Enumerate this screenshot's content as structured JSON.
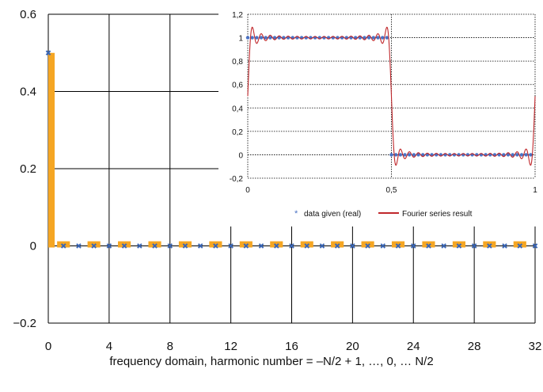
{
  "chart_data": [
    {
      "type": "bar",
      "xlabel": "frequency domain, harmonic number = –N/2 + 1, …, 0, … N/2",
      "ylabel": "",
      "xlim": [
        0,
        32
      ],
      "ylim": [
        -0.2,
        0.6
      ],
      "x_ticks": [
        0,
        4,
        8,
        12,
        16,
        20,
        24,
        28,
        32
      ],
      "x_tick_labels": [
        "0",
        "4",
        "8",
        "12",
        "16",
        "20",
        "24",
        "28",
        "32"
      ],
      "y_ticks": [
        -0.2,
        0,
        0.2,
        0.4,
        0.6
      ],
      "y_tick_labels": [
        "−0.2",
        "0",
        "0.2",
        "0.4",
        "0.6"
      ],
      "grid": true,
      "colors": {
        "bars": "#f5a623",
        "markers": "#3a66b5",
        "grid": "#000000"
      },
      "series": [
        {
          "kind": "bar",
          "x": [
            0,
            1,
            3,
            5,
            7,
            9,
            11,
            13,
            15,
            17,
            19,
            21,
            23,
            25,
            27,
            29,
            31
          ],
          "values": [
            0.5,
            0.012,
            0.012,
            0.012,
            0.012,
            0.012,
            0.012,
            0.012,
            0.012,
            0.012,
            0.012,
            0.012,
            0.012,
            0.012,
            0.012,
            0.012,
            0.012
          ]
        },
        {
          "kind": "marker",
          "marker": "x",
          "x": [
            0,
            1,
            2,
            3,
            4,
            5,
            6,
            7,
            8,
            9,
            10,
            11,
            12,
            13,
            14,
            15,
            16,
            17,
            18,
            19,
            20,
            21,
            22,
            23,
            24,
            25,
            26,
            27,
            28,
            29,
            30,
            31,
            32
          ],
          "values": [
            0.5,
            0,
            0,
            0,
            0,
            0,
            0,
            0,
            0,
            0,
            0,
            0,
            0,
            0,
            0,
            0,
            0,
            0,
            0,
            0,
            0,
            0,
            0,
            0,
            0,
            0,
            0,
            0,
            0,
            0,
            0,
            0,
            0
          ]
        }
      ]
    },
    {
      "type": "line",
      "xlim": [
        0,
        1
      ],
      "ylim": [
        -0.2,
        1.2
      ],
      "x_ticks": [
        0,
        0.5,
        1
      ],
      "x_tick_labels": [
        "0",
        "0,5",
        "1"
      ],
      "y_ticks": [
        -0.2,
        0,
        0.2,
        0.4,
        0.6,
        0.8,
        1,
        1.2
      ],
      "y_tick_labels": [
        "-0,2",
        "0",
        "0,2",
        "0,4",
        "0,6",
        "0,8",
        "1",
        "1,2"
      ],
      "grid": "dotted",
      "legend_placement": "bottom",
      "colors": {
        "data": "#4a72c4",
        "fourier": "#c0282c"
      },
      "series": [
        {
          "name": "data given (real)",
          "kind": "scatter",
          "x": [
            0,
            0.015625,
            0.03125,
            0.046875,
            0.0625,
            0.078125,
            0.09375,
            0.109375,
            0.125,
            0.140625,
            0.15625,
            0.171875,
            0.1875,
            0.203125,
            0.21875,
            0.234375,
            0.25,
            0.265625,
            0.28125,
            0.296875,
            0.3125,
            0.328125,
            0.34375,
            0.359375,
            0.375,
            0.390625,
            0.40625,
            0.421875,
            0.4375,
            0.453125,
            0.46875,
            0.484375,
            0.5,
            0.515625,
            0.53125,
            0.546875,
            0.5625,
            0.578125,
            0.59375,
            0.609375,
            0.625,
            0.640625,
            0.65625,
            0.671875,
            0.6875,
            0.703125,
            0.71875,
            0.734375,
            0.75,
            0.765625,
            0.78125,
            0.796875,
            0.8125,
            0.828125,
            0.84375,
            0.859375,
            0.875,
            0.890625,
            0.90625,
            0.921875,
            0.9375,
            0.953125,
            0.96875,
            0.984375
          ],
          "values": [
            1,
            1,
            1,
            1,
            1,
            1,
            1,
            1,
            1,
            1,
            1,
            1,
            1,
            1,
            1,
            1,
            1,
            1,
            1,
            1,
            1,
            1,
            1,
            1,
            1,
            1,
            1,
            1,
            1,
            1,
            1,
            1,
            0,
            0,
            0,
            0,
            0,
            0,
            0,
            0,
            0,
            0,
            0,
            0,
            0,
            0,
            0,
            0,
            0,
            0,
            0,
            0,
            0,
            0,
            0,
            0,
            0,
            0,
            0,
            0,
            0,
            0,
            0,
            0
          ]
        },
        {
          "name": "Fourier series result",
          "kind": "line",
          "function": "square wave partial Fourier sum, odd harmonics 1..31",
          "max_harmonic": 31
        }
      ]
    }
  ]
}
